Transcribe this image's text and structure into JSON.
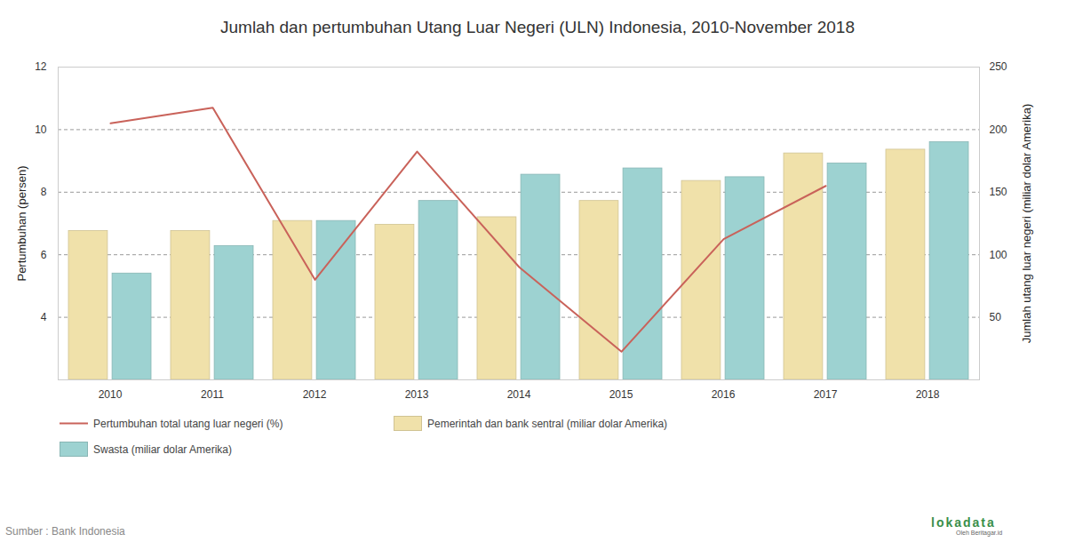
{
  "chart_data": {
    "type": "bar",
    "title": "Jumlah dan pertumbuhan Utang Luar Negeri (ULN) Indonesia, 2010-November 2018",
    "categories": [
      "2010",
      "2011",
      "2012",
      "2013",
      "2014",
      "2015",
      "2016",
      "2017",
      "2018"
    ],
    "ylabel": "Pertumbuhan (persen)",
    "y2label": "Jumlah utang luar negeri (miliar dolar Amerika)",
    "ylim": [
      2,
      12
    ],
    "yticks": [
      4,
      6,
      8,
      10,
      12
    ],
    "y2lim": [
      0,
      250
    ],
    "y2ticks": [
      50,
      100,
      150,
      200,
      250
    ],
    "grid": true,
    "legend": "bottom",
    "series": [
      {
        "name": "Pertumbuhan total utang luar negeri (%)",
        "type": "line",
        "color": "#c9625a",
        "values": [
          10.2,
          10.7,
          5.2,
          9.3,
          5.6,
          2.9,
          6.5,
          8.2,
          null
        ]
      },
      {
        "name": "Pemerintah dan bank sentral (miliar dolar Amerika)",
        "type": "bar",
        "axis": "y2",
        "color": "#f0e1aa",
        "values": [
          119,
          119,
          127,
          124,
          130,
          143,
          159,
          181,
          184
        ]
      },
      {
        "name": "Swasta (miliar dolar Amerika)",
        "type": "bar",
        "axis": "y2",
        "color": "#9dd2d1",
        "values": [
          85,
          107,
          127,
          143,
          164,
          169,
          162,
          173,
          190
        ]
      }
    ],
    "source": "Sumber : Bank Indonesia",
    "credit": "lokadata",
    "credit_sub": "Oleh Beritagar.id"
  }
}
